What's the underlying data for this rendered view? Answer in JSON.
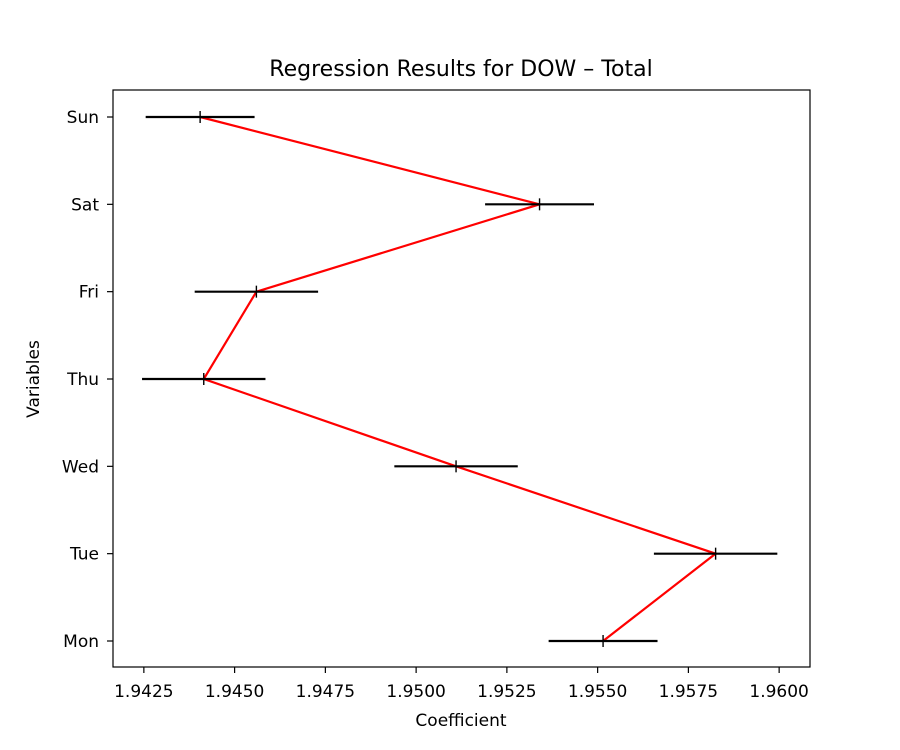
{
  "chart_data": {
    "type": "errorbar",
    "title": "Regression Results for DOW – Total",
    "xlabel": "Coefficient",
    "ylabel": "Variables",
    "categories": [
      "Mon",
      "Tue",
      "Wed",
      "Thu",
      "Fri",
      "Sat",
      "Sun"
    ],
    "coefficients": [
      1.95515,
      1.95825,
      1.9511,
      1.94415,
      1.9456,
      1.9534,
      1.94405
    ],
    "error": [
      0.0015,
      0.0017,
      0.0017,
      0.0017,
      0.0017,
      0.0015,
      0.0015
    ],
    "xlim": [
      1.94165,
      1.96085
    ],
    "xticks": [
      1.9425,
      1.945,
      1.9475,
      1.95,
      1.9525,
      1.955,
      1.9575,
      1.96
    ],
    "xtick_labels": [
      "1.9425",
      "1.9450",
      "1.9475",
      "1.9500",
      "1.9525",
      "1.9550",
      "1.9575",
      "1.9600"
    ],
    "grid": false,
    "line_color": "#ff0000",
    "errorbar_color": "#000000"
  }
}
